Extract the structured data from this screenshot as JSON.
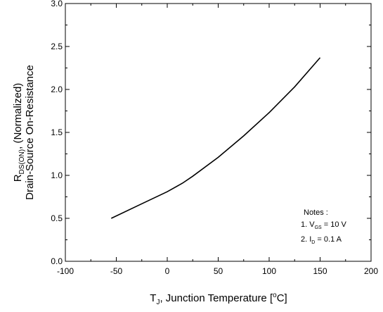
{
  "chart_data": {
    "type": "line",
    "xlabel": {
      "main": "T",
      "sub": "J",
      "rest": ", Junction Temperature [",
      "sup": "o",
      "unit": "C]"
    },
    "ylabel": {
      "line1_main": "R",
      "line1_sub": "DS(ON)",
      "line1_rest": ", (Normalized)",
      "line2": "Drain-Source On-Resistance"
    },
    "xlim": [
      -100,
      200
    ],
    "ylim": [
      0.0,
      3.0
    ],
    "x_ticks": [
      -100,
      -50,
      0,
      50,
      100,
      150,
      200
    ],
    "y_ticks": [
      "0.0",
      "0.5",
      "1.0",
      "1.5",
      "2.0",
      "2.5",
      "3.0"
    ],
    "grid": false,
    "series": [
      {
        "x": [
          -55,
          -25,
          0,
          15,
          25,
          50,
          75,
          100,
          125,
          150
        ],
        "y": [
          0.5,
          0.67,
          0.81,
          0.91,
          0.99,
          1.21,
          1.46,
          1.73,
          2.03,
          2.37
        ]
      }
    ],
    "notes": {
      "title": "Notes :",
      "note1": {
        "prefix": "1. V",
        "sub": "GS",
        "rest": " = 10 V"
      },
      "note2": {
        "prefix": "2. I",
        "sub": "D",
        "rest": " = 0.1 A"
      }
    }
  }
}
